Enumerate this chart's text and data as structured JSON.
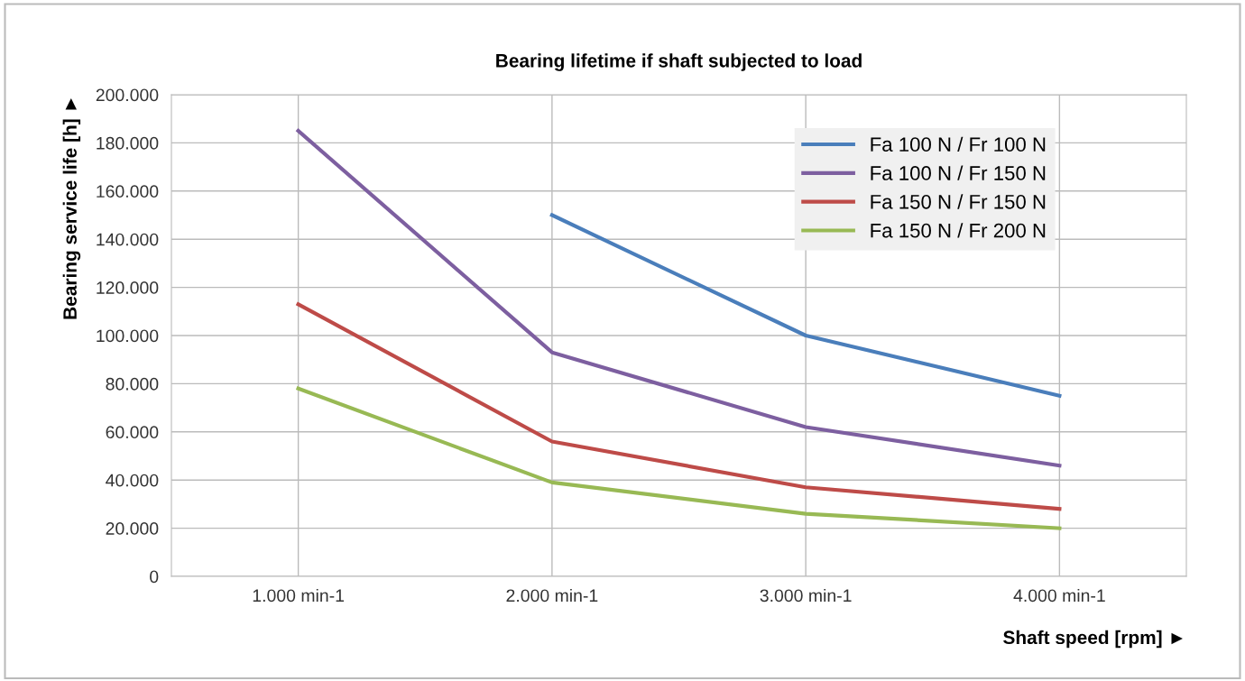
{
  "chart_data": {
    "type": "line",
    "title": "Bearing lifetime if shaft subjected to load",
    "xlabel": "Shaft speed [rpm] ►",
    "ylabel": "Bearing service life [h] ►",
    "categories": [
      "1.000 min-1",
      "2.000 min-1",
      "3.000 min-1",
      "4.000 min-1"
    ],
    "series": [
      {
        "name": "Fa 100 N / Fr 100 N",
        "color": "#4a7ebb",
        "values": [
          null,
          150000,
          100000,
          75000
        ]
      },
      {
        "name": "Fa 100 N / Fr 150 N",
        "color": "#7d5fa0",
        "values": [
          185000,
          93000,
          62000,
          46000
        ]
      },
      {
        "name": "Fa 150 N / Fr 150 N",
        "color": "#be4b48",
        "values": [
          113000,
          56000,
          37000,
          28000
        ]
      },
      {
        "name": "Fa 150 N / Fr 200 N",
        "color": "#98b954",
        "values": [
          78000,
          39000,
          26000,
          20000
        ]
      }
    ],
    "ylim": [
      0,
      200000
    ],
    "yticks": [
      {
        "value": 0,
        "label": "0"
      },
      {
        "value": 20000,
        "label": "20.000"
      },
      {
        "value": 40000,
        "label": "40.000"
      },
      {
        "value": 60000,
        "label": "60.000"
      },
      {
        "value": 80000,
        "label": "80.000"
      },
      {
        "value": 100000,
        "label": "100.000"
      },
      {
        "value": 120000,
        "label": "120.000"
      },
      {
        "value": 140000,
        "label": "140.000"
      },
      {
        "value": 160000,
        "label": "160.000"
      },
      {
        "value": 180000,
        "label": "180.000"
      },
      {
        "value": 200000,
        "label": "200.000"
      }
    ],
    "grid": true,
    "legend": "top right",
    "marker": "none",
    "line_style": "solid"
  }
}
